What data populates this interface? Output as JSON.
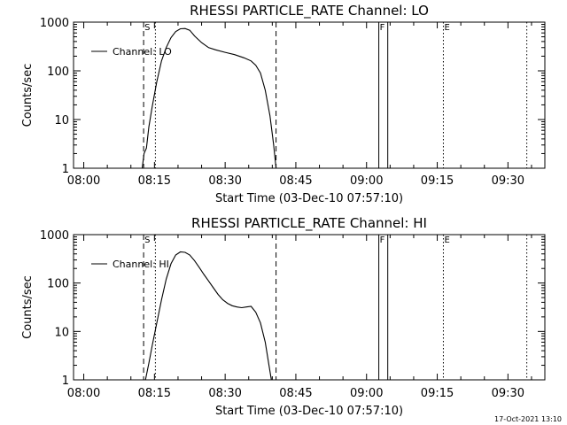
{
  "footer": {
    "timestamp": "17-Oct-2021 13:10"
  },
  "chart_data": [
    {
      "type": "line",
      "title": "RHESSI PARTICLE_RATE Channel: LO",
      "xlabel": "Start Time (03-Dec-10 07:57:10)",
      "ylabel": "Counts/sec",
      "yscale": "log",
      "ylim": [
        1,
        1000
      ],
      "xlim_minutes": [
        -2.17,
        97.83
      ],
      "x_ticks": [
        {
          "t": 0,
          "label": "08:00"
        },
        {
          "t": 15,
          "label": "08:15"
        },
        {
          "t": 30,
          "label": "08:30"
        },
        {
          "t": 45,
          "label": "08:45"
        },
        {
          "t": 60,
          "label": "09:00"
        },
        {
          "t": 75,
          "label": "09:15"
        },
        {
          "t": 90,
          "label": "09:30"
        }
      ],
      "y_ticks": [
        {
          "v": 1,
          "label": "1"
        },
        {
          "v": 10,
          "label": "10"
        },
        {
          "v": 100,
          "label": "100"
        },
        {
          "v": 1000,
          "label": "1000"
        }
      ],
      "legend": "Channel: LO",
      "legend_position": "upper-left",
      "series": [
        {
          "name": "Channel: LO",
          "points": [
            [
              12.4,
              1.0
            ],
            [
              12.8,
              2.0
            ],
            [
              13.3,
              2.6
            ],
            [
              13.8,
              7
            ],
            [
              14.5,
              18
            ],
            [
              15.5,
              60
            ],
            [
              16.5,
              160
            ],
            [
              17.5,
              300
            ],
            [
              18.5,
              480
            ],
            [
              19.5,
              640
            ],
            [
              20.5,
              730
            ],
            [
              21.5,
              740
            ],
            [
              22.5,
              680
            ],
            [
              23.5,
              520
            ],
            [
              25,
              380
            ],
            [
              26.5,
              300
            ],
            [
              28,
              270
            ],
            [
              30,
              240
            ],
            [
              32,
              215
            ],
            [
              34,
              185
            ],
            [
              35.5,
              160
            ],
            [
              36.5,
              130
            ],
            [
              37.5,
              90
            ],
            [
              38.5,
              40
            ],
            [
              39.5,
              12
            ],
            [
              40.3,
              3
            ],
            [
              40.8,
              1.0
            ]
          ]
        }
      ],
      "vlines": [
        {
          "t": 12.7,
          "style": "dashed",
          "label": "S"
        },
        {
          "t": 15.2,
          "style": "dotted",
          "label": ""
        },
        {
          "t": 40.8,
          "style": "dashed",
          "label": ""
        },
        {
          "t": 62.6,
          "style": "solid",
          "label": "F"
        },
        {
          "t": 64.5,
          "style": "solid",
          "label": ""
        },
        {
          "t": 76.3,
          "style": "dotted",
          "label": "E"
        },
        {
          "t": 94.0,
          "style": "dotted",
          "label": ""
        }
      ]
    },
    {
      "type": "line",
      "title": "RHESSI PARTICLE_RATE Channel: HI",
      "xlabel": "Start Time (03-Dec-10 07:57:10)",
      "ylabel": "Counts/sec",
      "yscale": "log",
      "ylim": [
        1,
        1000
      ],
      "xlim_minutes": [
        -2.17,
        97.83
      ],
      "x_ticks": [
        {
          "t": 0,
          "label": "08:00"
        },
        {
          "t": 15,
          "label": "08:15"
        },
        {
          "t": 30,
          "label": "08:30"
        },
        {
          "t": 45,
          "label": "08:45"
        },
        {
          "t": 60,
          "label": "09:00"
        },
        {
          "t": 75,
          "label": "09:15"
        },
        {
          "t": 90,
          "label": "09:30"
        }
      ],
      "y_ticks": [
        {
          "v": 1,
          "label": "1"
        },
        {
          "v": 10,
          "label": "10"
        },
        {
          "v": 100,
          "label": "100"
        },
        {
          "v": 1000,
          "label": "1000"
        }
      ],
      "legend": "Channel: HI",
      "legend_position": "upper-left",
      "series": [
        {
          "name": "Channel: HI",
          "points": [
            [
              13.1,
              1.0
            ],
            [
              13.8,
              2.2
            ],
            [
              14.5,
              5
            ],
            [
              15.5,
              15
            ],
            [
              16.5,
              45
            ],
            [
              17.5,
              120
            ],
            [
              18.5,
              250
            ],
            [
              19.5,
              380
            ],
            [
              20.5,
              440
            ],
            [
              21.5,
              430
            ],
            [
              22.5,
              380
            ],
            [
              23.5,
              290
            ],
            [
              24.5,
              210
            ],
            [
              25.5,
              150
            ],
            [
              26.5,
              110
            ],
            [
              27.5,
              80
            ],
            [
              28.5,
              58
            ],
            [
              29.5,
              45
            ],
            [
              30.5,
              38
            ],
            [
              31.5,
              34
            ],
            [
              32.5,
              32
            ],
            [
              33.5,
              31
            ],
            [
              34.5,
              32
            ],
            [
              35.5,
              33
            ],
            [
              36.5,
              25
            ],
            [
              37.5,
              15
            ],
            [
              38.5,
              6
            ],
            [
              39.3,
              2
            ],
            [
              39.8,
              1.0
            ]
          ]
        }
      ],
      "vlines": [
        {
          "t": 12.7,
          "style": "dashed",
          "label": "S"
        },
        {
          "t": 15.2,
          "style": "dotted",
          "label": ""
        },
        {
          "t": 40.8,
          "style": "dashed",
          "label": ""
        },
        {
          "t": 62.6,
          "style": "solid",
          "label": "F"
        },
        {
          "t": 64.5,
          "style": "solid",
          "label": ""
        },
        {
          "t": 76.3,
          "style": "dotted",
          "label": "E"
        },
        {
          "t": 94.0,
          "style": "dotted",
          "label": ""
        }
      ]
    }
  ]
}
